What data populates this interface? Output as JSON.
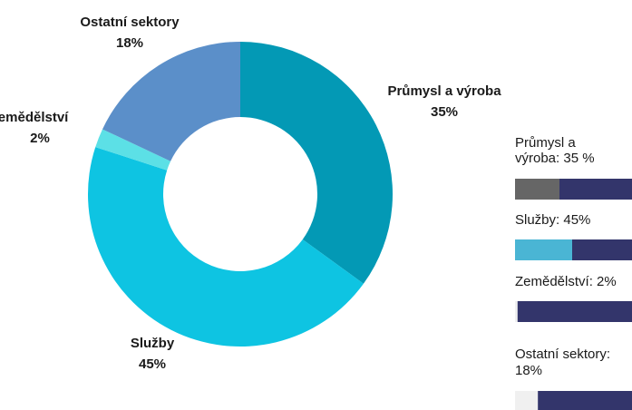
{
  "chart_data": {
    "type": "donut",
    "categories": [
      "Průmysl a výroba",
      "Služby",
      "Zemědělství",
      "Ostatní sektory"
    ],
    "values": [
      35,
      45,
      2,
      18
    ],
    "value_labels": [
      "35%",
      "45%",
      "2%",
      "18%"
    ],
    "colors": [
      "#0399b5",
      "#0ec4e2",
      "#5ce0e6",
      "#5b8fc9"
    ],
    "bar_labels": [
      [
        "Průmysl a",
        "výroba: 35 %"
      ],
      [
        "Služby: 45%"
      ],
      [
        "Zemědělství: 2%"
      ],
      [
        "Ostatní sektory:",
        "18%"
      ]
    ],
    "bar_colors": [
      "#666666",
      "#4ab5d4",
      "#f0f0f0",
      "#f0f0f0"
    ],
    "bar_track_color": "#33356b",
    "bar_xlim": [
      0,
      100
    ]
  }
}
